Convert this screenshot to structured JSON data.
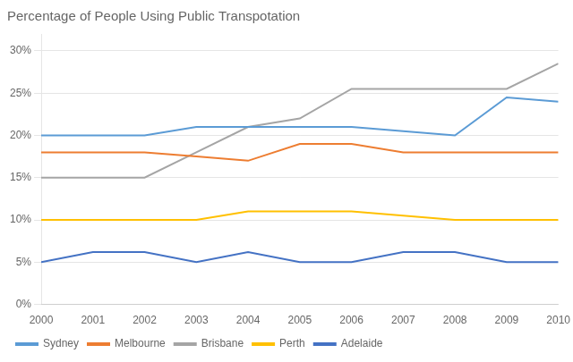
{
  "chart_data": {
    "type": "line",
    "title": "Percentage of People Using Public Transpotation",
    "x": [
      2000,
      2001,
      2002,
      2003,
      2004,
      2005,
      2006,
      2007,
      2008,
      2009,
      2010
    ],
    "series": [
      {
        "name": "Sydney",
        "color": "#5b9bd5",
        "values": [
          0.2,
          0.2,
          0.2,
          0.21,
          0.21,
          0.21,
          0.21,
          0.205,
          0.2,
          0.245,
          0.24
        ]
      },
      {
        "name": "Melbourne",
        "color": "#ed7d31",
        "values": [
          0.18,
          0.18,
          0.18,
          0.175,
          0.17,
          0.19,
          0.19,
          0.18,
          0.18,
          0.18,
          0.18
        ]
      },
      {
        "name": "Brisbane",
        "color": "#a5a5a5",
        "values": [
          0.15,
          0.15,
          0.15,
          0.18,
          0.21,
          0.22,
          0.255,
          0.255,
          0.255,
          0.255,
          0.285
        ]
      },
      {
        "name": "Perth",
        "color": "#ffc000",
        "values": [
          0.1,
          0.1,
          0.1,
          0.1,
          0.11,
          0.11,
          0.11,
          0.105,
          0.1,
          0.1,
          0.1
        ]
      },
      {
        "name": "Adelaide",
        "color": "#4472c4",
        "values": [
          0.05,
          0.062,
          0.062,
          0.05,
          0.062,
          0.05,
          0.05,
          0.062,
          0.062,
          0.05,
          0.05
        ]
      }
    ],
    "xlim": [
      2000,
      2010
    ],
    "xticks": [
      2000,
      2001,
      2002,
      2003,
      2004,
      2005,
      2006,
      2007,
      2008,
      2009,
      2010
    ],
    "ylim": [
      0,
      0.32
    ],
    "yticks": [
      {
        "value": 0.0,
        "label": "0%"
      },
      {
        "value": 0.05,
        "label": "5%"
      },
      {
        "value": 0.1,
        "label": "10%"
      },
      {
        "value": 0.15,
        "label": "15%"
      },
      {
        "value": 0.2,
        "label": "20%"
      },
      {
        "value": 0.25,
        "label": "25%"
      },
      {
        "value": 0.3,
        "label": "30%"
      }
    ],
    "grid": true,
    "legend": "lower left"
  }
}
